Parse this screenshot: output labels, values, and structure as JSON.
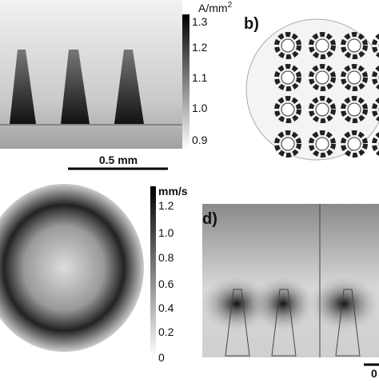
{
  "panel_a": {
    "unit": "A/mm",
    "unit_exp": "2",
    "ticks": [
      "1.3",
      "1.2",
      "1.1",
      "1.0",
      "0.9"
    ],
    "scale_bar": "0.5 mm"
  },
  "panel_b": {
    "label": "b)"
  },
  "panel_c": {
    "unit": "mm/s",
    "ticks": [
      "1.2",
      "1.0",
      "0.8",
      "0.6",
      "0.4",
      "0.2",
      "0"
    ]
  },
  "panel_d": {
    "label": "d)",
    "scale_label": "0"
  }
}
